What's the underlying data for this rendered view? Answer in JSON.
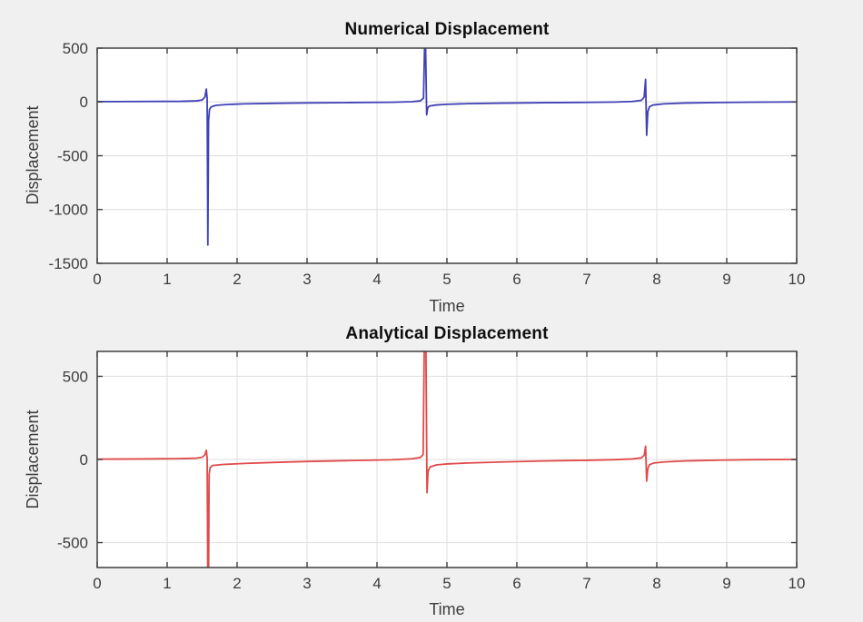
{
  "figure": {
    "background": "#f0f0f0",
    "plot_background": "#ffffff",
    "grid_color": "#e3e3e3",
    "frame_color": "#3f3f3f",
    "tick_color": "#3f3f3f",
    "tick_label_color": "#3d3d3d",
    "title_color": "#0f0f0f"
  },
  "chart_data": [
    {
      "type": "line",
      "title": "Numerical Displacement",
      "xlabel": "Time",
      "ylabel": "Displacement",
      "xlim": [
        0,
        10
      ],
      "ylim": [
        -1500,
        500
      ],
      "xticks": [
        0,
        1,
        2,
        3,
        4,
        5,
        6,
        7,
        8,
        9,
        10
      ],
      "yticks": [
        500,
        0,
        -500,
        -1000,
        -1500
      ],
      "grid": true,
      "legend": "none",
      "series": [
        {
          "name": "numerical displacement",
          "color": "#4040b8",
          "x": [
            0,
            0.6,
            1.2,
            1.42,
            1.5,
            1.54,
            1.56,
            1.572,
            1.582,
            1.592,
            1.605,
            1.63,
            1.7,
            1.85,
            2.1,
            2.5,
            3.0,
            3.6,
            4.2,
            4.5,
            4.62,
            4.665,
            4.68,
            4.695,
            4.71,
            4.725,
            4.75,
            4.85,
            5.0,
            5.3,
            5.8,
            6.4,
            7.0,
            7.4,
            7.65,
            7.78,
            7.82,
            7.84,
            7.855,
            7.872,
            7.895,
            7.95,
            8.1,
            8.4,
            8.9,
            9.4,
            10
          ],
          "y": [
            3,
            4,
            6,
            10,
            18,
            45,
            120,
            30,
            -1330,
            -180,
            -70,
            -45,
            -32,
            -24,
            -18,
            -13,
            -9,
            -6,
            -3,
            2,
            10,
            35,
            500,
            500,
            -120,
            -55,
            -38,
            -28,
            -22,
            -16,
            -11,
            -7,
            -4,
            -1,
            4,
            15,
            45,
            210,
            -310,
            -90,
            -45,
            -28,
            -18,
            -10,
            -5,
            -2,
            0
          ]
        }
      ],
      "spikes_readout": [
        {
          "time": 1.57,
          "peak": 120,
          "trough": -1330
        },
        {
          "time": 4.7,
          "peak": 500,
          "peak_clipped": true,
          "trough": -120
        },
        {
          "time": 7.86,
          "peak": 210,
          "trough": -310
        }
      ]
    },
    {
      "type": "line",
      "title": "Analytical Displacement",
      "xlabel": "Time",
      "ylabel": "Displacement",
      "xlim": [
        0,
        10
      ],
      "ylim": [
        -650,
        650
      ],
      "xticks": [
        0,
        1,
        2,
        3,
        4,
        5,
        6,
        7,
        8,
        9,
        10
      ],
      "yticks": [
        500,
        0,
        -500
      ],
      "grid": true,
      "legend": "none",
      "series": [
        {
          "name": "analytical displacement",
          "color": "#e04a4a",
          "x": [
            0,
            0.6,
            1.2,
            1.42,
            1.5,
            1.54,
            1.56,
            1.572,
            1.58,
            1.593,
            1.6,
            1.615,
            1.65,
            1.8,
            2.1,
            2.5,
            3.0,
            3.6,
            4.2,
            4.5,
            4.62,
            4.66,
            4.675,
            4.7,
            4.715,
            4.73,
            4.76,
            4.85,
            5.0,
            5.3,
            5.8,
            6.4,
            7.0,
            7.4,
            7.65,
            7.78,
            7.82,
            7.84,
            7.855,
            7.872,
            7.895,
            7.95,
            8.1,
            8.4,
            8.9,
            9.4,
            10
          ],
          "y": [
            2,
            3,
            5,
            8,
            13,
            28,
            55,
            10,
            -650,
            -650,
            -90,
            -48,
            -36,
            -30,
            -24,
            -18,
            -12,
            -7,
            -2,
            4,
            12,
            30,
            650,
            650,
            -200,
            -70,
            -45,
            -33,
            -27,
            -21,
            -15,
            -9,
            -5,
            -1,
            3,
            10,
            25,
            80,
            -130,
            -55,
            -32,
            -22,
            -15,
            -9,
            -4,
            -1,
            0
          ]
        }
      ],
      "spikes_readout": [
        {
          "time": 1.58,
          "peak": 55,
          "trough": -650,
          "trough_clipped": true
        },
        {
          "time": 4.7,
          "peak": 650,
          "peak_clipped": true,
          "trough": -200
        },
        {
          "time": 7.86,
          "peak": 80,
          "trough": -130
        }
      ]
    }
  ]
}
